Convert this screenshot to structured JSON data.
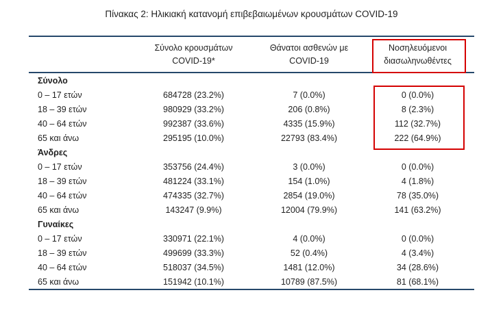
{
  "title": "Πίνακας 2: Ηλικιακή κατανομή επιβεβαιωμένων κρουσμάτων COVID-19",
  "colors": {
    "rule": "#25476a",
    "highlight": "#d40000",
    "text": "#1f1f1f"
  },
  "table": {
    "columns": [
      {
        "line1": "Σύνολο κρουσμάτων",
        "line2": "COVID-19*"
      },
      {
        "line1": "Θάνατοι ασθενών με",
        "line2": "COVID-19"
      },
      {
        "line1": "Νοσηλευόμενοι",
        "line2": "διασωληνωθέντες"
      }
    ],
    "sections": [
      {
        "label": "Σύνολο",
        "rows": [
          {
            "age": "0 – 17 ετών",
            "cases": "684728 (23.2%)",
            "deaths": "7 (0.0%)",
            "intubated": "0 (0.0%)"
          },
          {
            "age": "18 – 39 ετών",
            "cases": "980929 (33.2%)",
            "deaths": "206 (0.8%)",
            "intubated": "8 (2.3%)"
          },
          {
            "age": "40 – 64 ετών",
            "cases": "992387 (33.6%)",
            "deaths": "4335 (15.9%)",
            "intubated": "112 (32.7%)"
          },
          {
            "age": "65 και άνω",
            "cases": "295195 (10.0%)",
            "deaths": "22793 (83.4%)",
            "intubated": "222 (64.9%)"
          }
        ]
      },
      {
        "label": "Άνδρες",
        "rows": [
          {
            "age": "0 – 17 ετών",
            "cases": "353756 (24.4%)",
            "deaths": "3 (0.0%)",
            "intubated": "0 (0.0%)"
          },
          {
            "age": "18 – 39 ετών",
            "cases": "481224 (33.1%)",
            "deaths": "154 (1.0%)",
            "intubated": "4 (1.8%)"
          },
          {
            "age": "40 – 64 ετών",
            "cases": "474335 (32.7%)",
            "deaths": "2854 (19.0%)",
            "intubated": "78 (35.0%)"
          },
          {
            "age": "65 και άνω",
            "cases": "143247 (9.9%)",
            "deaths": "12004 (79.9%)",
            "intubated": "141 (63.2%)"
          }
        ]
      },
      {
        "label": "Γυναίκες",
        "rows": [
          {
            "age": "0 – 17 ετών",
            "cases": "330971 (22.1%)",
            "deaths": "4 (0.0%)",
            "intubated": "0 (0.0%)"
          },
          {
            "age": "18 – 39 ετών",
            "cases": "499699 (33.3%)",
            "deaths": "52 (0.4%)",
            "intubated": "4 (3.4%)"
          },
          {
            "age": "40 – 64 ετών",
            "cases": "518037 (34.5%)",
            "deaths": "1481 (12.0%)",
            "intubated": "34 (28.6%)"
          },
          {
            "age": "65 και άνω",
            "cases": "151942 (10.1%)",
            "deaths": "10789 (87.5%)",
            "intubated": "81 (68.1%)"
          }
        ]
      }
    ]
  }
}
